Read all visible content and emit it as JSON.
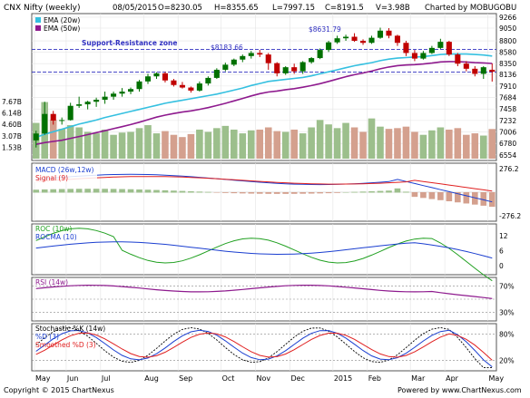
{
  "header": {
    "title": "CNX Nifty (weekly)",
    "date": "08/05/2015",
    "open": "O=8230.05",
    "high": "H=8355.65",
    "low": "L=7997.15",
    "close": "C=8191.5",
    "volume": "V=3.98B",
    "charted_by": "Charted by MOBUGOBU"
  },
  "footer": {
    "copyright": "Copyright © 2015 ChartNexus",
    "powered_by": "Powered by www.ChartNexus.com"
  },
  "colors": {
    "up": "#007000",
    "down": "#c00000",
    "ema20": "#35c0e0",
    "ema50": "#8e1a8e",
    "macd": "#1a3ed0",
    "signal": "#e02020",
    "roc": "#20a020",
    "rocma": "#1a3ed0",
    "rsi": "#8e1a8e",
    "stoch_k": "#000000",
    "stoch_d": "#1a3ed0",
    "stoch_sd": "#e02020",
    "vol_up": "#9cbf8c",
    "vol_down": "#d4a08e",
    "sr": "#3030c0"
  },
  "chart_data": [
    {
      "type": "candlestick",
      "panel": "price",
      "legend": [
        "EMA (20w)",
        "EMA (50w)"
      ],
      "annotations": [
        "$8631.79",
        "$8183.66",
        "Support-Resistance zone"
      ],
      "support_resistance": [
        8631.79,
        8183.66
      ],
      "y_ticks": [
        9266,
        9050,
        8800,
        8580,
        8350,
        8136,
        7910,
        7684,
        7458,
        7232,
        7006,
        6780,
        6554
      ],
      "ylim": [
        6480,
        9300
      ],
      "x_months": [
        "May",
        "Jun",
        "Jul",
        "Aug",
        "Sep",
        "Oct",
        "Nov",
        "Dec",
        "2015",
        "Feb",
        "Mar",
        "Apr",
        "May"
      ],
      "weeks": 54,
      "ohlc": [
        [
          6840,
          7030,
          6700,
          6975
        ],
        [
          6975,
          7600,
          6950,
          7360
        ],
        [
          7360,
          7420,
          7150,
          7230
        ],
        [
          7230,
          7290,
          7150,
          7240
        ],
        [
          7240,
          7580,
          7230,
          7520
        ],
        [
          7520,
          7700,
          7480,
          7550
        ],
        [
          7550,
          7620,
          7450,
          7600
        ],
        [
          7600,
          7680,
          7500,
          7640
        ],
        [
          7640,
          7800,
          7560,
          7700
        ],
        [
          7700,
          7800,
          7640,
          7760
        ],
        [
          7760,
          7870,
          7700,
          7800
        ],
        [
          7800,
          7880,
          7750,
          7850
        ],
        [
          7850,
          8030,
          7800,
          8000
        ],
        [
          8000,
          8150,
          7950,
          8100
        ],
        [
          8100,
          8180,
          8050,
          8160
        ],
        [
          8160,
          8190,
          7980,
          8020
        ],
        [
          8020,
          8050,
          7900,
          7930
        ],
        [
          7930,
          7990,
          7860,
          7880
        ],
        [
          7880,
          7900,
          7780,
          7820
        ],
        [
          7820,
          8000,
          7800,
          7960
        ],
        [
          7960,
          8100,
          7920,
          8070
        ],
        [
          8070,
          8260,
          8050,
          8230
        ],
        [
          8230,
          8370,
          8200,
          8330
        ],
        [
          8330,
          8450,
          8300,
          8430
        ],
        [
          8430,
          8530,
          8380,
          8500
        ],
        [
          8500,
          8600,
          8450,
          8560
        ],
        [
          8560,
          8620,
          8480,
          8530
        ],
        [
          8530,
          8560,
          8230,
          8360
        ],
        [
          8360,
          8380,
          8100,
          8160
        ],
        [
          8160,
          8300,
          8130,
          8280
        ],
        [
          8280,
          8350,
          8150,
          8200
        ],
        [
          8200,
          8400,
          8150,
          8380
        ],
        [
          8380,
          8480,
          8350,
          8460
        ],
        [
          8460,
          8650,
          8440,
          8620
        ],
        [
          8620,
          8800,
          8580,
          8770
        ],
        [
          8770,
          8900,
          8740,
          8850
        ],
        [
          8850,
          8920,
          8800,
          8880
        ],
        [
          8880,
          8950,
          8780,
          8800
        ],
        [
          8800,
          8830,
          8720,
          8760
        ],
        [
          8760,
          8900,
          8740,
          8860
        ],
        [
          8860,
          9060,
          8840,
          9000
        ],
        [
          9000,
          9050,
          8850,
          8900
        ],
        [
          8900,
          8920,
          8700,
          8760
        ],
        [
          8760,
          8800,
          8500,
          8560
        ],
        [
          8560,
          8620,
          8400,
          8450
        ],
        [
          8450,
          8600,
          8430,
          8560
        ],
        [
          8560,
          8700,
          8540,
          8660
        ],
        [
          8660,
          8840,
          8640,
          8780
        ],
        [
          8780,
          8800,
          8500,
          8530
        ],
        [
          8530,
          8560,
          8300,
          8350
        ],
        [
          8350,
          8400,
          8200,
          8250
        ],
        [
          8250,
          8300,
          8100,
          8150
        ],
        [
          8150,
          8300,
          8050,
          8280
        ],
        [
          8230,
          8355.65,
          7997.15,
          8191.5
        ]
      ],
      "ema20": [
        6900,
        6960,
        7010,
        7060,
        7110,
        7160,
        7200,
        7240,
        7290,
        7330,
        7370,
        7410,
        7450,
        7490,
        7530,
        7570,
        7600,
        7630,
        7660,
        7690,
        7720,
        7750,
        7790,
        7830,
        7870,
        7920,
        7960,
        8000,
        8020,
        8040,
        8060,
        8080,
        8110,
        8150,
        8190,
        8230,
        8270,
        8310,
        8340,
        8370,
        8410,
        8440,
        8460,
        8470,
        8480,
        8490,
        8510,
        8530,
        8540,
        8540,
        8540,
        8530,
        8520,
        8500
      ]
    },
    {
      "type": "bar",
      "panel": "volume",
      "y_ticks": [
        "7.67B",
        "6.14B",
        "4.60B",
        "3.07B",
        "1.53B"
      ],
      "ylim": [
        0,
        7.67
      ],
      "values": [
        4.8,
        7.6,
        5.2,
        4.0,
        4.5,
        4.2,
        3.6,
        3.4,
        3.9,
        3.2,
        3.5,
        3.6,
        4.1,
        4.5,
        3.4,
        3.7,
        3.2,
        2.9,
        3.3,
        3.9,
        3.6,
        4.1,
        4.4,
        3.9,
        3.4,
        3.8,
        3.9,
        4.2,
        3.7,
        3.6,
        3.9,
        3.4,
        4.2,
        5.2,
        4.6,
        4.1,
        4.8,
        4.2,
        3.6,
        5.4,
        4.3,
        4.0,
        4.1,
        4.3,
        3.6,
        3.2,
        3.8,
        4.2,
        3.9,
        4.1,
        3.2,
        3.4,
        3.1,
        3.98
      ]
    },
    {
      "type": "line",
      "panel": "macd",
      "legend": [
        "MACD (26w,12w)",
        "Signal (9)"
      ],
      "y_ticks": [
        "276.2",
        "-276.2"
      ],
      "ylim": [
        -320,
        320
      ]
    },
    {
      "type": "line",
      "panel": "roc",
      "legend": [
        "ROC (10w)",
        "ROCMA (10)"
      ],
      "y_ticks": [
        "12",
        "6",
        "0"
      ],
      "ylim": [
        -3,
        16
      ]
    },
    {
      "type": "line",
      "panel": "rsi",
      "legend": [
        "RSI (14w)"
      ],
      "y_ticks": [
        "70%",
        "30%"
      ],
      "ylim": [
        20,
        80
      ]
    },
    {
      "type": "line",
      "panel": "stochastic",
      "legend": [
        "Stochastic %K (14w)",
        "%D (3)",
        "Smoothed %D (3)"
      ],
      "y_ticks": [
        "80%",
        "20%"
      ],
      "ylim": [
        0,
        100
      ]
    }
  ]
}
